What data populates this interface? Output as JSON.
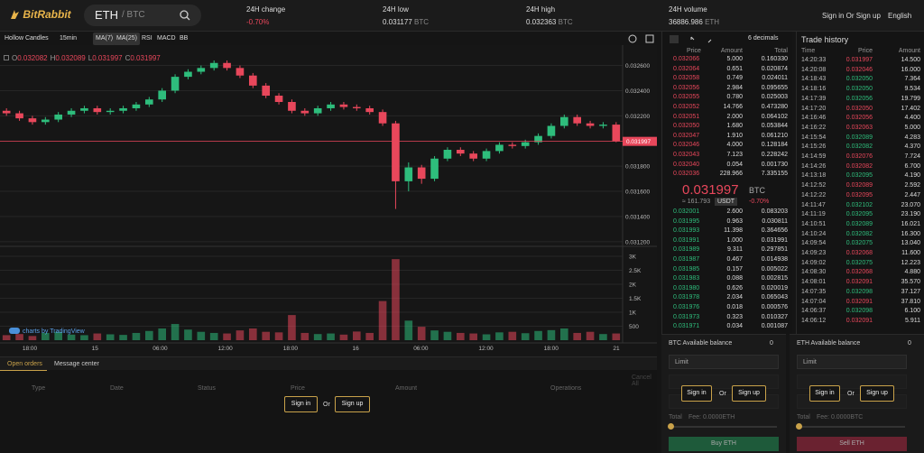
{
  "header": {
    "logo": "BitRabbit",
    "base": "ETH",
    "quote": "/ BTC",
    "stats": [
      [
        "24H change",
        "-0.70%",
        ""
      ],
      [
        "24H low",
        "0.031177",
        "BTC"
      ],
      [
        "24H high",
        "0.032363",
        "BTC"
      ],
      [
        "24H volume",
        "36886.986",
        "ETH"
      ]
    ],
    "auth": "Sign in Or Sign up",
    "language": "English"
  },
  "toolbar": [
    "Hollow Candles",
    "15min",
    "MA(7)",
    "MA(25)",
    "RSI",
    "MACD",
    "BB"
  ],
  "chart": {
    "type": "candlestick",
    "ohlc": [
      [
        "O",
        "0.032082"
      ],
      [
        "H",
        "0.032089"
      ],
      [
        "L",
        "0.031997"
      ],
      [
        "C",
        "0.031997"
      ]
    ],
    "ylim": [
      0.03117,
      0.03269
    ],
    "yticks": [
      {
        "value": 0.0326,
        "label": "0.032600"
      },
      {
        "value": 0.0324,
        "label": "0.032400"
      },
      {
        "value": 0.0322,
        "label": "0.032200"
      },
      {
        "value": 0.0318,
        "label": "0.031800"
      },
      {
        "value": 0.0316,
        "label": "0.031600"
      },
      {
        "value": 0.0314,
        "label": "0.031400"
      },
      {
        "value": 0.0312,
        "label": "0.031200"
      }
    ],
    "last": {
      "value": 0.031997,
      "label": "0.031997"
    },
    "xlabels": [
      "18:00",
      "15",
      "06:00",
      "12:00",
      "18:00",
      "16",
      "06:00",
      "12:00",
      "18:00",
      "21"
    ],
    "candles": [
      [
        0.03224,
        0.03226,
        0.0322,
        0.03222
      ],
      [
        0.03222,
        0.03224,
        0.03216,
        0.03218
      ],
      [
        0.03218,
        0.0322,
        0.03213,
        0.03215
      ],
      [
        0.03215,
        0.03219,
        0.03213,
        0.03217
      ],
      [
        0.03217,
        0.03223,
        0.03215,
        0.03221
      ],
      [
        0.03221,
        0.03226,
        0.03219,
        0.03224
      ],
      [
        0.03224,
        0.03228,
        0.03222,
        0.03226
      ],
      [
        0.03226,
        0.03228,
        0.03221,
        0.03223
      ],
      [
        0.03223,
        0.03226,
        0.03221,
        0.03224
      ],
      [
        0.03224,
        0.03228,
        0.03222,
        0.03226
      ],
      [
        0.03226,
        0.03231,
        0.03224,
        0.03229
      ],
      [
        0.03229,
        0.03235,
        0.03227,
        0.03233
      ],
      [
        0.03233,
        0.03242,
        0.03231,
        0.0324
      ],
      [
        0.0324,
        0.03253,
        0.03238,
        0.03251
      ],
      [
        0.03251,
        0.03257,
        0.03249,
        0.03255
      ],
      [
        0.03255,
        0.0326,
        0.03253,
        0.03258
      ],
      [
        0.03258,
        0.03264,
        0.03256,
        0.03262
      ],
      [
        0.03262,
        0.03264,
        0.03256,
        0.03258
      ],
      [
        0.03258,
        0.0326,
        0.0325,
        0.03252
      ],
      [
        0.03252,
        0.03254,
        0.03242,
        0.03244
      ],
      [
        0.03244,
        0.03246,
        0.03234,
        0.03236
      ],
      [
        0.03236,
        0.03238,
        0.03229,
        0.03231
      ],
      [
        0.03231,
        0.03233,
        0.03222,
        0.03224
      ],
      [
        0.03224,
        0.03226,
        0.0322,
        0.03222
      ],
      [
        0.03222,
        0.03228,
        0.0322,
        0.03226
      ],
      [
        0.03226,
        0.03231,
        0.03224,
        0.03229
      ],
      [
        0.03229,
        0.03231,
        0.03225,
        0.03227
      ],
      [
        0.03227,
        0.03229,
        0.03224,
        0.03226
      ],
      [
        0.03226,
        0.03228,
        0.03221,
        0.03223
      ],
      [
        0.03223,
        0.03225,
        0.03212,
        0.03214
      ],
      [
        0.03214,
        0.03216,
        0.03146,
        0.03168
      ],
      [
        0.03168,
        0.03183,
        0.0316,
        0.03179
      ],
      [
        0.03179,
        0.03181,
        0.03166,
        0.0317
      ],
      [
        0.0317,
        0.03188,
        0.03168,
        0.03186
      ],
      [
        0.03186,
        0.03195,
        0.03184,
        0.03193
      ],
      [
        0.03193,
        0.03195,
        0.03188,
        0.0319
      ],
      [
        0.0319,
        0.03192,
        0.03184,
        0.03186
      ],
      [
        0.03186,
        0.03194,
        0.03184,
        0.03192
      ],
      [
        0.03192,
        0.03199,
        0.0319,
        0.03197
      ],
      [
        0.03197,
        0.03199,
        0.03194,
        0.03196
      ],
      [
        0.03196,
        0.03201,
        0.03194,
        0.03199
      ],
      [
        0.03199,
        0.03206,
        0.03197,
        0.03204
      ],
      [
        0.03204,
        0.03214,
        0.03202,
        0.03212
      ],
      [
        0.03212,
        0.03221,
        0.0321,
        0.03219
      ],
      [
        0.03219,
        0.03221,
        0.03212,
        0.03214
      ],
      [
        0.03214,
        0.03216,
        0.0321,
        0.03212
      ],
      [
        0.03212,
        0.03215,
        0.0321,
        0.03213
      ],
      [
        0.03213,
        0.03215,
        0.03199,
        0.032
      ]
    ],
    "volumes": [
      180,
      220,
      150,
      260,
      300,
      200,
      180,
      240,
      210,
      190,
      260,
      330,
      420,
      580,
      380,
      300,
      260,
      240,
      350,
      420,
      300,
      280,
      900,
      260,
      220,
      240,
      200,
      310,
      260,
      1400,
      2900,
      700,
      480,
      350,
      300,
      260,
      240,
      210,
      280,
      300,
      250,
      330,
      360,
      420,
      260,
      300,
      220,
      240
    ],
    "vlim": [
      0,
      3260
    ],
    "vticks": [
      {
        "value": 3000,
        "label": "3K"
      },
      {
        "value": 2500,
        "label": "2.5K"
      },
      {
        "value": 2000,
        "label": "2K"
      },
      {
        "value": 1500,
        "label": "1.5K"
      },
      {
        "value": 1000,
        "label": "1K"
      },
      500
    ],
    "credit": "charts by TradingView"
  },
  "order_book": {
    "decimals": "6 decimals",
    "columns": [
      "Price",
      "Amount",
      "Total"
    ],
    "asks": [
      [
        "0.032066",
        "5.000",
        "0.160330"
      ],
      [
        "0.032064",
        "0.651",
        "0.020874"
      ],
      [
        "0.032058",
        "0.749",
        "0.024011"
      ],
      [
        "0.032056",
        "2.984",
        "0.095655"
      ],
      [
        "0.032055",
        "0.780",
        "0.025003"
      ],
      [
        "0.032052",
        "14.766",
        "0.473280"
      ],
      [
        "0.032051",
        "2.000",
        "0.064102"
      ],
      [
        "0.032050",
        "1.680",
        "0.053844"
      ],
      [
        "0.032047",
        "1.910",
        "0.061210"
      ],
      [
        "0.032046",
        "4.000",
        "0.128184"
      ],
      [
        "0.032043",
        "7.123",
        "0.228242"
      ],
      [
        "0.032040",
        "0.054",
        "0.001730"
      ],
      [
        "0.032036",
        "228.966",
        "7.335155"
      ]
    ],
    "last_price": "0.031997",
    "last_unit": "BTC",
    "fiat": "≈ 161.793",
    "fiat_unit": "USDT",
    "change": "-0.70%",
    "bids": [
      [
        "0.032001",
        "2.600",
        "0.083203"
      ],
      [
        "0.031995",
        "0.963",
        "0.030811"
      ],
      [
        "0.031993",
        "11.398",
        "0.364656"
      ],
      [
        "0.031991",
        "1.000",
        "0.031991"
      ],
      [
        "0.031989",
        "9.311",
        "0.297851"
      ],
      [
        "0.031987",
        "0.467",
        "0.014938"
      ],
      [
        "0.031985",
        "0.157",
        "0.005022"
      ],
      [
        "0.031983",
        "0.088",
        "0.002815"
      ],
      [
        "0.031980",
        "0.626",
        "0.020019"
      ],
      [
        "0.031978",
        "2.034",
        "0.065043"
      ],
      [
        "0.031976",
        "0.018",
        "0.000576"
      ],
      [
        "0.031973",
        "0.323",
        "0.010327"
      ],
      [
        "0.031971",
        "0.034",
        "0.001087"
      ]
    ]
  },
  "trade_history": {
    "title": "Trade history",
    "columns": [
      "Time",
      "Price",
      "Amount"
    ],
    "rows": [
      [
        "14:20:33",
        "0.031997",
        "14.500",
        "sell"
      ],
      [
        "14:20:08",
        "0.032046",
        "16.000",
        "sell"
      ],
      [
        "14:18:43",
        "0.032050",
        "7.364",
        "buy"
      ],
      [
        "14:18:16",
        "0.032050",
        "9.534",
        "buy"
      ],
      [
        "14:17:39",
        "0.032056",
        "19.799",
        "buy"
      ],
      [
        "14:17:20",
        "0.032050",
        "17.402",
        "sell"
      ],
      [
        "14:16:46",
        "0.032056",
        "4.400",
        "sell"
      ],
      [
        "14:16:22",
        "0.032063",
        "5.000",
        "sell"
      ],
      [
        "14:15:54",
        "0.032089",
        "4.283",
        "buy"
      ],
      [
        "14:15:26",
        "0.032082",
        "4.370",
        "buy"
      ],
      [
        "14:14:59",
        "0.032076",
        "7.724",
        "sell"
      ],
      [
        "14:14:26",
        "0.032082",
        "6.700",
        "sell"
      ],
      [
        "14:13:18",
        "0.032095",
        "4.190",
        "buy"
      ],
      [
        "14:12:52",
        "0.032089",
        "2.592",
        "sell"
      ],
      [
        "14:12:22",
        "0.032095",
        "2.447",
        "sell"
      ],
      [
        "14:11:47",
        "0.032102",
        "23.070",
        "buy"
      ],
      [
        "14:11:19",
        "0.032095",
        "23.190",
        "buy"
      ],
      [
        "14:10:51",
        "0.032089",
        "16.021",
        "buy"
      ],
      [
        "14:10:24",
        "0.032082",
        "16.300",
        "buy"
      ],
      [
        "14:09:54",
        "0.032075",
        "13.040",
        "buy"
      ],
      [
        "14:09:23",
        "0.032068",
        "11.600",
        "sell"
      ],
      [
        "14:09:02",
        "0.032075",
        "12.223",
        "buy"
      ],
      [
        "14:08:30",
        "0.032068",
        "4.880",
        "sell"
      ],
      [
        "14:08:01",
        "0.032091",
        "35.570",
        "sell"
      ],
      [
        "14:07:35",
        "0.032098",
        "37.127",
        "buy"
      ],
      [
        "14:07:04",
        "0.032091",
        "37.810",
        "sell"
      ],
      [
        "14:06:37",
        "0.032098",
        "6.100",
        "buy"
      ],
      [
        "14:06:12",
        "0.032091",
        "5.911",
        "sell"
      ]
    ]
  },
  "orders": {
    "tabs": [
      "Open orders",
      "Message center"
    ],
    "cancel": "Cancel All",
    "columns": [
      "Type",
      "Date",
      "Status",
      "Price",
      "Amount",
      "Operations"
    ],
    "sign_in": "Sign in",
    "or": "Or",
    "sign_up": "Sign up"
  },
  "buy": {
    "balance_label": "BTC Available balance",
    "balance": "0",
    "order_type": "Limit",
    "sign_in": "Sign in",
    "or": "Or",
    "sign_up": "Sign up",
    "total": "Total",
    "fee": "Fee: 0.0000ETH",
    "button": "Buy ETH"
  },
  "sell": {
    "balance_label": "ETH Available balance",
    "balance": "0",
    "order_type": "Limit",
    "sign_in": "Sign in",
    "or": "Or",
    "sign_up": "Sign up",
    "total": "Total",
    "fee": "Fee: 0.0000BTC",
    "button": "Sell ETH"
  }
}
